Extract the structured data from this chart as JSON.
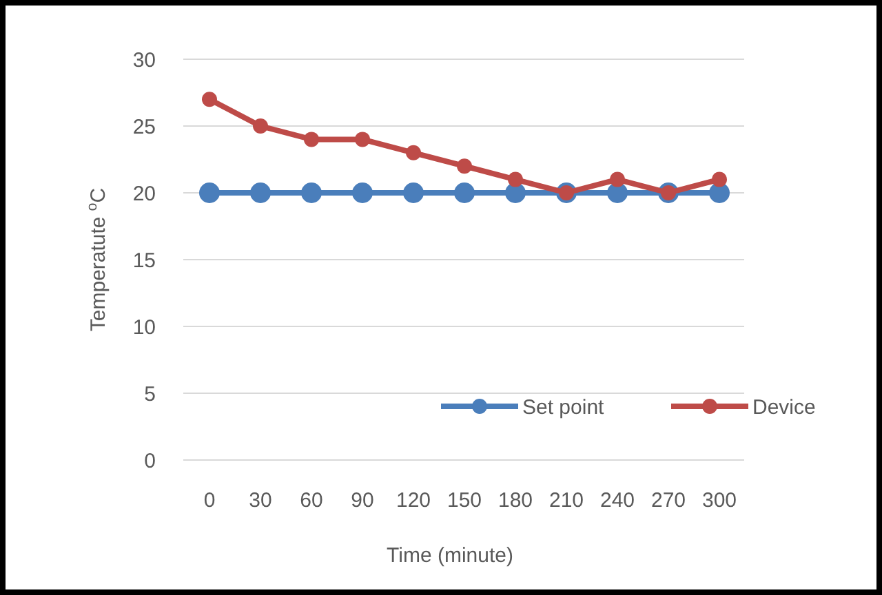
{
  "chart_data": {
    "type": "line",
    "xlabel": "Time (minute)",
    "ylabel": "Temperatute $^{o}$C",
    "categories": [
      "0",
      "30",
      "60",
      "90",
      "120",
      "150",
      "180",
      "210",
      "240",
      "270",
      "300"
    ],
    "series": [
      {
        "name": "Set point",
        "color": "#4a7ebb",
        "values": [
          20,
          20,
          20,
          20,
          20,
          20,
          20,
          20,
          20,
          20,
          20
        ]
      },
      {
        "name": "Device",
        "color": "#be4b48",
        "values": [
          27,
          25,
          24,
          24,
          23,
          22,
          21,
          20,
          21,
          20,
          21
        ]
      }
    ],
    "ylim": [
      0,
      30
    ],
    "yticks": [
      0,
      5,
      10,
      15,
      20,
      25,
      30
    ],
    "grid": "y",
    "legend": "bottom",
    "marker": "circle",
    "line_style": "solid"
  }
}
